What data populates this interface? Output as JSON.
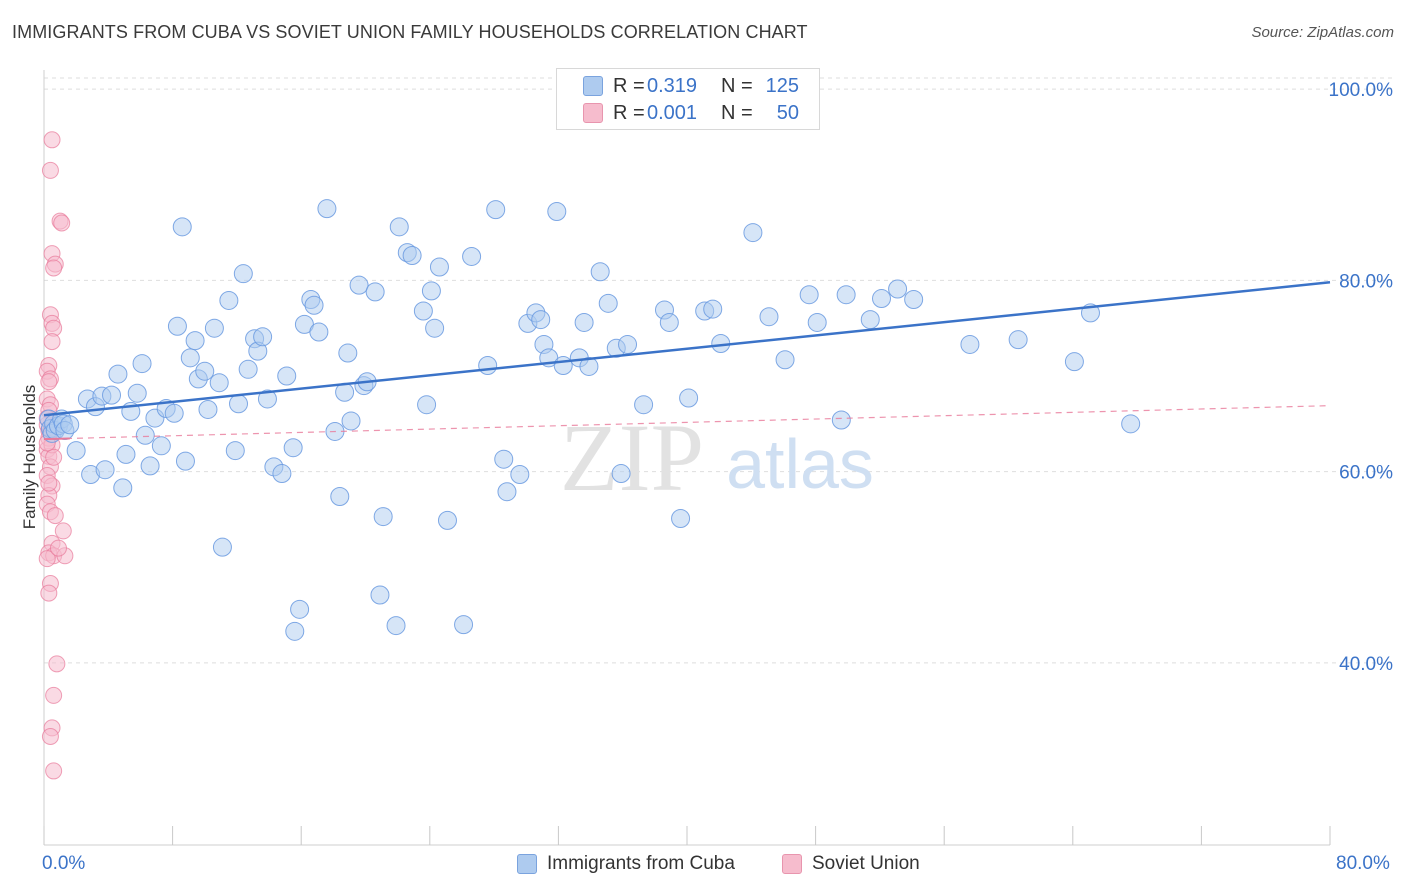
{
  "title": "IMMIGRANTS FROM CUBA VS SOVIET UNION FAMILY HOUSEHOLDS CORRELATION CHART",
  "source": "Source: ZipAtlas.com",
  "watermark": {
    "zip": "ZIP",
    "atlas": "atlas"
  },
  "colors": {
    "blue": "#3b73c8",
    "blue_fill": "#aecbef",
    "pink": "#e8799a",
    "pink_fill": "#f6bccd",
    "axis_text": "#3b73c8"
  },
  "legend": {
    "rows": [
      {
        "r_label": "R =",
        "r_value": "0.319",
        "n_label": "N =",
        "n_value": "125"
      },
      {
        "r_label": "R =",
        "r_value": "0.001",
        "n_label": "N =",
        "n_value": "50"
      }
    ]
  },
  "bottom_legend": {
    "series1": "Immigrants from Cuba",
    "series2": "Soviet Union"
  },
  "chart_data": {
    "type": "scatter",
    "title": "IMMIGRANTS FROM CUBA VS SOVIET UNION FAMILY HOUSEHOLDS CORRELATION CHART",
    "xlabel": "",
    "ylabel": "Family Households",
    "xlim": [
      0,
      80
    ],
    "ylim": [
      22,
      102
    ],
    "x_tick_labels": [
      "0.0%",
      "80.0%"
    ],
    "y_ticks": [
      40,
      60,
      80,
      100
    ],
    "y_tick_labels": [
      "40.0%",
      "60.0%",
      "80.0%",
      "100.0%"
    ],
    "grid": true,
    "series": [
      {
        "name": "Immigrants from Cuba",
        "r": 0.319,
        "n": 125,
        "trend": {
          "x": [
            0,
            80
          ],
          "y": [
            65.9,
            79.8
          ]
        },
        "points": [
          [
            0.3,
            65.5
          ],
          [
            0.4,
            64.5
          ],
          [
            0.5,
            64.0
          ],
          [
            0.6,
            65.0
          ],
          [
            0.7,
            64.3
          ],
          [
            0.9,
            64.8
          ],
          [
            1.1,
            65.5
          ],
          [
            1.2,
            65.0
          ],
          [
            1.3,
            64.3
          ],
          [
            1.6,
            64.9
          ],
          [
            2.0,
            62.2
          ],
          [
            2.7,
            67.6
          ],
          [
            2.9,
            59.7
          ],
          [
            3.2,
            66.8
          ],
          [
            3.6,
            67.9
          ],
          [
            3.8,
            60.2
          ],
          [
            4.2,
            68.0
          ],
          [
            4.6,
            70.2
          ],
          [
            4.9,
            58.3
          ],
          [
            5.1,
            61.8
          ],
          [
            5.4,
            66.3
          ],
          [
            5.8,
            68.2
          ],
          [
            6.1,
            71.3
          ],
          [
            6.3,
            63.8
          ],
          [
            6.6,
            60.6
          ],
          [
            6.9,
            65.6
          ],
          [
            7.3,
            62.7
          ],
          [
            7.6,
            66.6
          ],
          [
            8.1,
            66.1
          ],
          [
            8.3,
            75.2
          ],
          [
            8.6,
            85.6
          ],
          [
            8.8,
            61.1
          ],
          [
            9.1,
            71.9
          ],
          [
            9.4,
            73.7
          ],
          [
            9.6,
            69.7
          ],
          [
            10.0,
            70.5
          ],
          [
            10.2,
            66.5
          ],
          [
            10.6,
            75.0
          ],
          [
            10.9,
            69.3
          ],
          [
            11.1,
            52.1
          ],
          [
            11.5,
            77.9
          ],
          [
            11.9,
            62.2
          ],
          [
            12.1,
            67.1
          ],
          [
            12.4,
            80.7
          ],
          [
            12.7,
            70.7
          ],
          [
            13.1,
            73.9
          ],
          [
            13.3,
            72.6
          ],
          [
            13.6,
            74.1
          ],
          [
            13.9,
            67.6
          ],
          [
            14.3,
            60.5
          ],
          [
            14.8,
            59.8
          ],
          [
            15.1,
            70.0
          ],
          [
            15.5,
            62.5
          ],
          [
            15.9,
            45.6
          ],
          [
            15.6,
            43.3
          ],
          [
            16.2,
            75.4
          ],
          [
            16.6,
            78.0
          ],
          [
            16.8,
            77.4
          ],
          [
            17.1,
            74.6
          ],
          [
            17.6,
            87.5
          ],
          [
            18.1,
            64.2
          ],
          [
            18.4,
            57.4
          ],
          [
            18.7,
            68.3
          ],
          [
            18.9,
            72.4
          ],
          [
            19.1,
            65.3
          ],
          [
            19.6,
            79.5
          ],
          [
            19.9,
            69.0
          ],
          [
            20.1,
            69.4
          ],
          [
            20.6,
            78.8
          ],
          [
            20.9,
            47.1
          ],
          [
            21.1,
            55.3
          ],
          [
            21.9,
            43.9
          ],
          [
            22.1,
            85.6
          ],
          [
            22.6,
            82.9
          ],
          [
            22.9,
            82.6
          ],
          [
            23.6,
            76.8
          ],
          [
            23.8,
            67.0
          ],
          [
            24.1,
            78.9
          ],
          [
            24.3,
            75.0
          ],
          [
            24.6,
            81.4
          ],
          [
            25.1,
            54.9
          ],
          [
            26.1,
            44.0
          ],
          [
            26.6,
            82.5
          ],
          [
            27.6,
            71.1
          ],
          [
            28.1,
            87.4
          ],
          [
            28.6,
            61.3
          ],
          [
            28.8,
            57.9
          ],
          [
            29.6,
            59.7
          ],
          [
            30.1,
            75.5
          ],
          [
            30.6,
            76.6
          ],
          [
            30.9,
            75.9
          ],
          [
            31.1,
            73.3
          ],
          [
            31.4,
            71.9
          ],
          [
            31.9,
            87.2
          ],
          [
            32.3,
            71.1
          ],
          [
            33.3,
            71.9
          ],
          [
            33.6,
            75.6
          ],
          [
            33.9,
            71.0
          ],
          [
            34.6,
            80.9
          ],
          [
            35.1,
            77.6
          ],
          [
            35.6,
            72.9
          ],
          [
            35.9,
            59.8
          ],
          [
            36.3,
            73.3
          ],
          [
            37.3,
            67.0
          ],
          [
            38.6,
            76.9
          ],
          [
            38.9,
            75.6
          ],
          [
            39.6,
            55.1
          ],
          [
            40.1,
            67.7
          ],
          [
            41.1,
            76.8
          ],
          [
            41.6,
            77.0
          ],
          [
            42.1,
            73.4
          ],
          [
            44.1,
            85.0
          ],
          [
            45.1,
            76.2
          ],
          [
            46.1,
            71.7
          ],
          [
            47.6,
            78.5
          ],
          [
            48.1,
            75.6
          ],
          [
            49.6,
            65.4
          ],
          [
            49.9,
            78.5
          ],
          [
            51.4,
            75.9
          ],
          [
            52.1,
            78.1
          ],
          [
            53.1,
            79.1
          ],
          [
            54.1,
            78.0
          ],
          [
            57.6,
            73.3
          ],
          [
            60.6,
            73.8
          ],
          [
            64.1,
            71.5
          ],
          [
            65.1,
            76.6
          ],
          [
            67.6,
            65.0
          ]
        ]
      },
      {
        "name": "Soviet Union",
        "r": 0.001,
        "n": 50,
        "trend": {
          "x": [
            0,
            80
          ],
          "y": [
            63.4,
            66.9
          ]
        },
        "points": [
          [
            0.2,
            64.9
          ],
          [
            0.3,
            64.3
          ],
          [
            0.2,
            62.3
          ],
          [
            0.3,
            61.6
          ],
          [
            0.4,
            60.5
          ],
          [
            0.2,
            59.6
          ],
          [
            0.5,
            58.5
          ],
          [
            0.3,
            57.5
          ],
          [
            0.2,
            56.6
          ],
          [
            0.4,
            55.8
          ],
          [
            0.5,
            52.5
          ],
          [
            0.3,
            51.5
          ],
          [
            0.6,
            51.2
          ],
          [
            0.2,
            50.9
          ],
          [
            0.4,
            48.3
          ],
          [
            0.3,
            47.3
          ],
          [
            0.8,
            39.9
          ],
          [
            0.6,
            36.6
          ],
          [
            0.5,
            33.2
          ],
          [
            0.4,
            32.3
          ],
          [
            0.6,
            28.7
          ],
          [
            0.5,
            94.7
          ],
          [
            0.4,
            91.5
          ],
          [
            1.0,
            86.2
          ],
          [
            1.1,
            86.0
          ],
          [
            0.5,
            82.8
          ],
          [
            0.7,
            81.7
          ],
          [
            0.6,
            81.3
          ],
          [
            0.4,
            76.4
          ],
          [
            0.5,
            75.5
          ],
          [
            0.6,
            75.0
          ],
          [
            0.5,
            73.6
          ],
          [
            0.3,
            71.1
          ],
          [
            0.2,
            70.5
          ],
          [
            0.4,
            69.7
          ],
          [
            0.3,
            69.4
          ],
          [
            0.2,
            67.6
          ],
          [
            0.4,
            67.0
          ],
          [
            0.3,
            66.4
          ],
          [
            0.2,
            65.6
          ],
          [
            0.4,
            64.2
          ],
          [
            0.3,
            63.5
          ],
          [
            0.5,
            62.8
          ],
          [
            0.6,
            61.5
          ],
          [
            1.2,
            53.8
          ],
          [
            1.3,
            51.2
          ],
          [
            0.9,
            52.0
          ],
          [
            0.7,
            55.4
          ],
          [
            0.3,
            58.8
          ],
          [
            0.2,
            63.0
          ]
        ]
      }
    ]
  }
}
